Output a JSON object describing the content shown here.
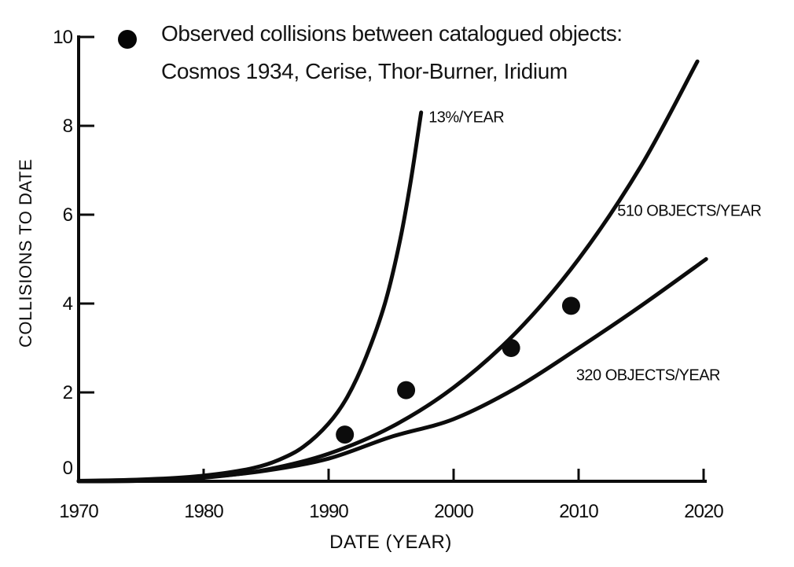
{
  "colors": {
    "ink": "#0c0c0c",
    "background": "#ffffff"
  },
  "chart_data": {
    "type": "line",
    "title": "",
    "xlabel": "DATE (YEAR)",
    "ylabel": "COLLISIONS TO DATE",
    "xlim": [
      1970,
      2020
    ],
    "ylim": [
      0,
      10
    ],
    "x_ticks": [
      1970,
      1980,
      1990,
      2000,
      2010,
      2020
    ],
    "y_ticks": [
      0,
      2,
      4,
      6,
      8,
      10
    ],
    "grid": false,
    "legend": {
      "position": "top-left",
      "marker": "filled-circle",
      "line1": "Observed collisions between catalogued objects:",
      "line2": "Cosmos 1934, Cerise, Thor-Burner, Iridium"
    },
    "series": [
      {
        "name": "13%/YEAR",
        "type": "curve",
        "label": "13%/YEAR",
        "label_anchor": {
          "year": 1998.0,
          "value": 8.2
        },
        "points": [
          [
            1970,
            0.01
          ],
          [
            1974,
            0.03
          ],
          [
            1978,
            0.08
          ],
          [
            1981,
            0.16
          ],
          [
            1984,
            0.3
          ],
          [
            1986,
            0.48
          ],
          [
            1988,
            0.78
          ],
          [
            1990,
            1.3
          ],
          [
            1991.5,
            1.9
          ],
          [
            1993,
            2.8
          ],
          [
            1994.5,
            4.0
          ],
          [
            1995.7,
            5.4
          ],
          [
            1996.6,
            6.8
          ],
          [
            1997.4,
            8.3
          ]
        ]
      },
      {
        "name": "510 OBJECTS/YEAR",
        "type": "curve",
        "label": "510 OBJECTS/YEAR",
        "label_anchor": {
          "year": 2013.1,
          "value": 6.1
        },
        "points": [
          [
            1970,
            0.0
          ],
          [
            1975,
            0.01
          ],
          [
            1980,
            0.08
          ],
          [
            1985,
            0.26
          ],
          [
            1990,
            0.62
          ],
          [
            1995,
            1.22
          ],
          [
            2000,
            2.11
          ],
          [
            2005,
            3.35
          ],
          [
            2010,
            5.0
          ],
          [
            2015,
            7.1
          ],
          [
            2019.5,
            9.45
          ]
        ]
      },
      {
        "name": "320 OBJECTS/YEAR",
        "type": "curve",
        "label": "320 OBJECTS/YEAR",
        "label_anchor": {
          "year": 2009.8,
          "value": 2.4
        },
        "points": [
          [
            1970,
            0.0
          ],
          [
            1975,
            0.02
          ],
          [
            1980,
            0.09
          ],
          [
            1985,
            0.24
          ],
          [
            1990,
            0.51
          ],
          [
            1995,
            1.0
          ],
          [
            2000,
            1.4
          ],
          [
            2005,
            2.1
          ],
          [
            2010,
            3.0
          ],
          [
            2015,
            3.95
          ],
          [
            2020.2,
            5.0
          ]
        ]
      },
      {
        "name": "Observed collisions",
        "type": "scatter",
        "marker": "filled-circle",
        "points": [
          [
            1991.3,
            1.05
          ],
          [
            1996.2,
            2.05
          ],
          [
            2004.6,
            3.0
          ],
          [
            2009.4,
            3.95
          ]
        ]
      }
    ]
  }
}
